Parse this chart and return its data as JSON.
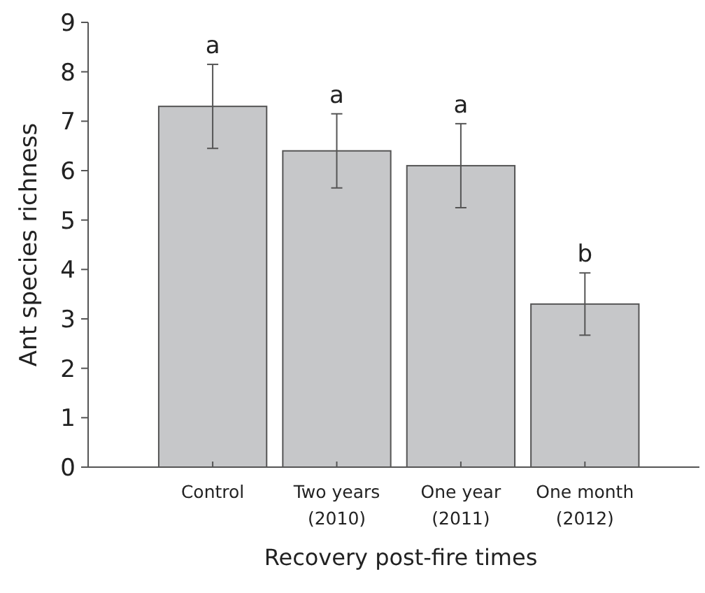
{
  "chart_data": {
    "type": "bar",
    "xlabel": "Recovery post-fire times",
    "ylabel": "Ant species richness",
    "categories": [
      "Control",
      "Two years\n(2010)",
      "One year\n(2011)",
      "One month\n(2012)"
    ],
    "values": [
      7.3,
      6.4,
      6.1,
      3.3
    ],
    "errors": [
      0.85,
      0.75,
      0.85,
      0.63
    ],
    "color": "#c6c7c9",
    "ylim": [
      0,
      9
    ],
    "yticks": [
      0,
      1,
      2,
      3,
      4,
      5,
      6,
      7,
      8,
      9
    ],
    "grid": false,
    "annotations": [
      {
        "text": "a",
        "x": "Control",
        "y": 8.15
      },
      {
        "text": "a",
        "x": "Two years\n(2010)",
        "y": 7.15
      },
      {
        "text": "a",
        "x": "One year\n(2011)",
        "y": 6.95
      },
      {
        "text": "b",
        "x": "One month\n(2012)",
        "y": 3.93
      }
    ]
  }
}
